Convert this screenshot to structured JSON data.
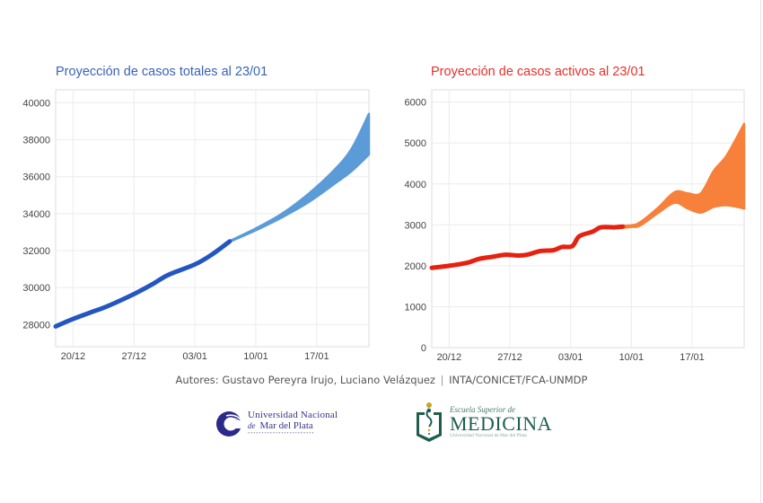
{
  "chart_data": [
    {
      "type": "line",
      "title": "Proyección de casos totales al 23/01",
      "xlabel": "",
      "ylabel": "",
      "x_unit": "days since 20/12",
      "xlim": [
        -2,
        34
      ],
      "ylim": [
        26800,
        40700
      ],
      "x_ticks": [
        {
          "day": 0,
          "label": "20/12"
        },
        {
          "day": 7,
          "label": "27/12"
        },
        {
          "day": 14,
          "label": "03/01"
        },
        {
          "day": 21,
          "label": "10/01"
        },
        {
          "day": 28,
          "label": "17/01"
        }
      ],
      "y_ticks": [
        28000,
        30000,
        32000,
        34000,
        36000,
        38000,
        40000
      ],
      "grid": true,
      "colors": {
        "observed": "#2356c0",
        "band": "#5b9bd8",
        "title": "#3a63b8"
      },
      "series": [
        {
          "name": "observed",
          "kind": "line",
          "points": [
            [
              -2,
              27900
            ],
            [
              0,
              28300
            ],
            [
              2,
              28650
            ],
            [
              4,
              29000
            ],
            [
              7,
              29650
            ],
            [
              9,
              30150
            ],
            [
              11,
              30700
            ],
            [
              14,
              31250
            ],
            [
              16,
              31800
            ],
            [
              18,
              32500
            ]
          ]
        },
        {
          "name": "projection",
          "kind": "band",
          "points": [
            [
              18,
              32520,
              32480
            ],
            [
              21,
              33200,
              33100
            ],
            [
              24,
              34000,
              33800
            ],
            [
              27,
              35050,
              34600
            ],
            [
              30,
              36350,
              35600
            ],
            [
              32,
              37500,
              36300
            ],
            [
              34,
              39400,
              37200
            ]
          ]
        }
      ]
    },
    {
      "type": "line",
      "title": "Proyección de casos activos al 23/01",
      "xlabel": "",
      "ylabel": "",
      "x_unit": "days since 20/12",
      "xlim": [
        -2,
        34
      ],
      "ylim": [
        0,
        6300
      ],
      "x_ticks": [
        {
          "day": 0,
          "label": "20/12"
        },
        {
          "day": 7,
          "label": "27/12"
        },
        {
          "day": 14,
          "label": "03/01"
        },
        {
          "day": 21,
          "label": "10/01"
        },
        {
          "day": 28,
          "label": "17/01"
        }
      ],
      "y_ticks": [
        0,
        1000,
        2000,
        3000,
        4000,
        5000,
        6000
      ],
      "grid": true,
      "colors": {
        "observed": "#e8200f",
        "band": "#f7803a",
        "title": "#e8302a"
      },
      "series": [
        {
          "name": "observed",
          "kind": "line",
          "points": [
            [
              -2,
              1950
            ],
            [
              0,
              2000
            ],
            [
              2,
              2070
            ],
            [
              3.5,
              2170
            ],
            [
              5,
              2220
            ],
            [
              6.5,
              2270
            ],
            [
              8,
              2250
            ],
            [
              9,
              2270
            ],
            [
              10.5,
              2360
            ],
            [
              12,
              2380
            ],
            [
              13,
              2460
            ],
            [
              14.2,
              2480
            ],
            [
              15,
              2720
            ],
            [
              16.5,
              2830
            ],
            [
              17.5,
              2940
            ],
            [
              19,
              2940
            ],
            [
              20,
              2960
            ]
          ]
        },
        {
          "name": "projection",
          "kind": "band",
          "points": [
            [
              19.5,
              2980,
              2920
            ],
            [
              21,
              2990,
              2950
            ],
            [
              22,
              3060,
              2980
            ],
            [
              24,
              3400,
              3280
            ],
            [
              26,
              3800,
              3540
            ],
            [
              27.5,
              3770,
              3400
            ],
            [
              29,
              3770,
              3300
            ],
            [
              30.5,
              4320,
              3440
            ],
            [
              32,
              4700,
              3480
            ],
            [
              34,
              5470,
              3400
            ]
          ]
        }
      ]
    }
  ],
  "footer": {
    "authors": "Autores: Gustavo Pereyra Irujo, Luciano Velázquez",
    "separator": "|",
    "affiliation": "INTA/CONICET/FCA-UNMDP"
  },
  "logos": {
    "unmdp": {
      "icon": "wave-circle-logo-icon",
      "line1": "Universidad Nacional",
      "line2_prefix": "de",
      "line2": "Mar del Plata",
      "color": "#34348a"
    },
    "medicina": {
      "icon": "book-caduceus-logo-icon",
      "line1": "Escuela Superior de",
      "line2": "MEDICINA",
      "line3": "Universidad Nacional de Mar del Plata",
      "color": "#1f5e4f"
    }
  }
}
